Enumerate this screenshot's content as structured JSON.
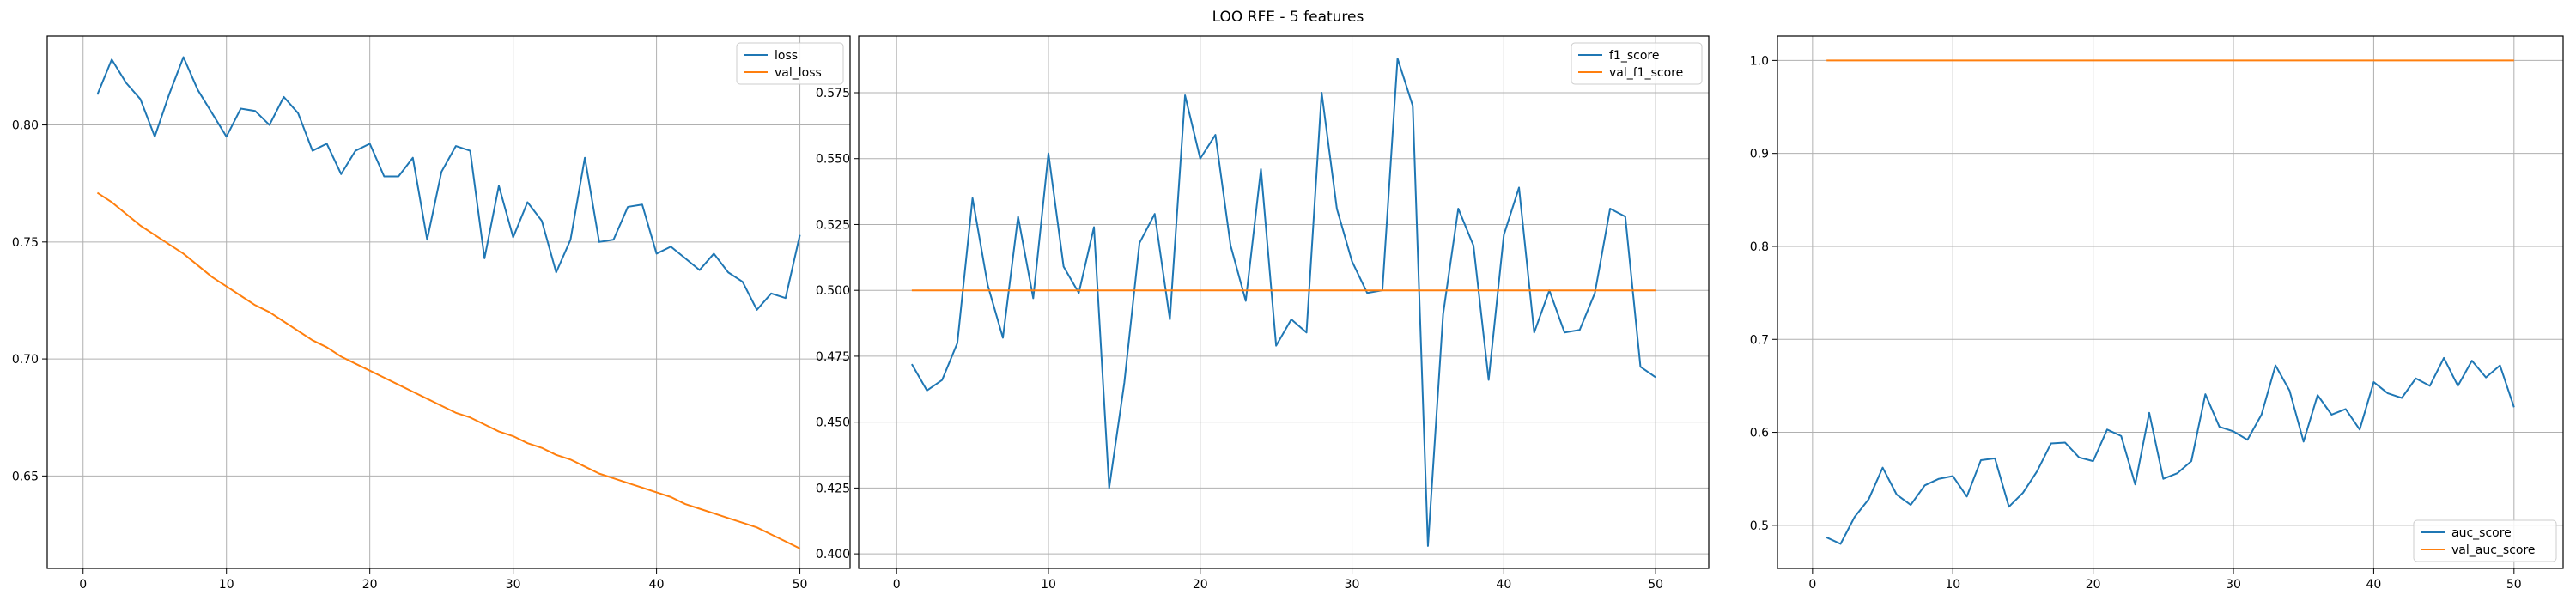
{
  "figure": {
    "suptitle": "LOO RFE - 5 features"
  },
  "colors": {
    "train": "#1f77b4",
    "val": "#ff7f0e",
    "grid": "#b0b0b0",
    "axes": "#000000"
  },
  "chart_data": [
    {
      "type": "line",
      "title": "",
      "xlabel": "",
      "ylabel": "",
      "xlim": [
        -2.5,
        53.5
      ],
      "ylim": [
        0.6105,
        0.838
      ],
      "xticks": [
        0,
        10,
        20,
        30,
        40,
        50
      ],
      "yticks": [
        0.65,
        0.7,
        0.75,
        0.8
      ],
      "ytick_labels": [
        "0.65",
        "0.70",
        "0.75",
        "0.80"
      ],
      "grid": true,
      "legend_position": "top-right",
      "series": [
        {
          "name": "loss",
          "color": "#1f77b4",
          "x": [
            1,
            2,
            3,
            4,
            5,
            6,
            7,
            8,
            9,
            10,
            11,
            12,
            13,
            14,
            15,
            16,
            17,
            18,
            19,
            20,
            21,
            22,
            23,
            24,
            25,
            26,
            27,
            28,
            29,
            30,
            31,
            32,
            33,
            34,
            35,
            36,
            37,
            38,
            39,
            40,
            41,
            42,
            43,
            44,
            45,
            46,
            47,
            48,
            49,
            50
          ],
          "values": [
            0.813,
            0.828,
            0.818,
            0.811,
            0.795,
            0.813,
            0.829,
            0.815,
            0.805,
            0.795,
            0.807,
            0.806,
            0.8,
            0.812,
            0.805,
            0.789,
            0.792,
            0.779,
            0.789,
            0.792,
            0.778,
            0.778,
            0.786,
            0.751,
            0.78,
            0.791,
            0.789,
            0.743,
            0.774,
            0.752,
            0.767,
            0.759,
            0.737,
            0.751,
            0.786,
            0.75,
            0.751,
            0.765,
            0.766,
            0.745,
            0.748,
            0.743,
            0.738,
            0.745,
            0.737,
            0.733,
            0.721,
            0.728,
            0.726,
            0.753
          ]
        },
        {
          "name": "val_loss",
          "color": "#ff7f0e",
          "x": [
            1,
            2,
            3,
            4,
            5,
            6,
            7,
            8,
            9,
            10,
            11,
            12,
            13,
            14,
            15,
            16,
            17,
            18,
            19,
            20,
            21,
            22,
            23,
            24,
            25,
            26,
            27,
            28,
            29,
            30,
            31,
            32,
            33,
            34,
            35,
            36,
            37,
            38,
            39,
            40,
            41,
            42,
            43,
            44,
            45,
            46,
            47,
            48,
            49,
            50
          ],
          "values": [
            0.771,
            0.767,
            0.762,
            0.757,
            0.753,
            0.749,
            0.745,
            0.74,
            0.735,
            0.731,
            0.727,
            0.723,
            0.72,
            0.716,
            0.712,
            0.708,
            0.705,
            0.701,
            0.698,
            0.695,
            0.692,
            0.689,
            0.686,
            0.683,
            0.68,
            0.677,
            0.675,
            0.672,
            0.669,
            0.667,
            0.664,
            0.662,
            0.659,
            0.657,
            0.654,
            0.651,
            0.649,
            0.647,
            0.645,
            0.643,
            0.641,
            0.638,
            0.636,
            0.634,
            0.632,
            0.63,
            0.628,
            0.625,
            0.622,
            0.619
          ]
        }
      ]
    },
    {
      "type": "line",
      "title": "",
      "xlabel": "",
      "ylabel": "",
      "xlim": [
        -2.5,
        53.5
      ],
      "ylim": [
        0.3945,
        0.5965
      ],
      "xticks": [
        0,
        10,
        20,
        30,
        40,
        50
      ],
      "yticks": [
        0.4,
        0.425,
        0.45,
        0.475,
        0.5,
        0.525,
        0.55,
        0.575
      ],
      "ytick_labels": [
        "0.400",
        "0.425",
        "0.450",
        "0.475",
        "0.500",
        "0.525",
        "0.550",
        "0.575"
      ],
      "grid": true,
      "legend_position": "top-right",
      "series": [
        {
          "name": "f1_score",
          "color": "#1f77b4",
          "x": [
            1,
            2,
            3,
            4,
            5,
            6,
            7,
            8,
            9,
            10,
            11,
            12,
            13,
            14,
            15,
            16,
            17,
            18,
            19,
            20,
            21,
            22,
            23,
            24,
            25,
            26,
            27,
            28,
            29,
            30,
            31,
            32,
            33,
            34,
            35,
            36,
            37,
            38,
            39,
            40,
            41,
            42,
            43,
            44,
            45,
            46,
            47,
            48,
            49,
            50
          ],
          "values": [
            0.472,
            0.462,
            0.466,
            0.48,
            0.535,
            0.502,
            0.482,
            0.528,
            0.497,
            0.552,
            0.509,
            0.499,
            0.524,
            0.425,
            0.465,
            0.518,
            0.529,
            0.489,
            0.574,
            0.55,
            0.559,
            0.517,
            0.496,
            0.546,
            0.479,
            0.489,
            0.484,
            0.575,
            0.531,
            0.511,
            0.499,
            0.5,
            0.588,
            0.57,
            0.403,
            0.491,
            0.531,
            0.517,
            0.466,
            0.521,
            0.539,
            0.484,
            0.5,
            0.484,
            0.485,
            0.499,
            0.531,
            0.528,
            0.471,
            0.467
          ]
        },
        {
          "name": "val_f1_score",
          "color": "#ff7f0e",
          "x": [
            1,
            2,
            3,
            4,
            5,
            6,
            7,
            8,
            9,
            10,
            11,
            12,
            13,
            14,
            15,
            16,
            17,
            18,
            19,
            20,
            21,
            22,
            23,
            24,
            25,
            26,
            27,
            28,
            29,
            30,
            31,
            32,
            33,
            34,
            35,
            36,
            37,
            38,
            39,
            40,
            41,
            42,
            43,
            44,
            45,
            46,
            47,
            48,
            49,
            50
          ],
          "values": [
            0.5,
            0.5,
            0.5,
            0.5,
            0.5,
            0.5,
            0.5,
            0.5,
            0.5,
            0.5,
            0.5,
            0.5,
            0.5,
            0.5,
            0.5,
            0.5,
            0.5,
            0.5,
            0.5,
            0.5,
            0.5,
            0.5,
            0.5,
            0.5,
            0.5,
            0.5,
            0.5,
            0.5,
            0.5,
            0.5,
            0.5,
            0.5,
            0.5,
            0.5,
            0.5,
            0.5,
            0.5,
            0.5,
            0.5,
            0.5,
            0.5,
            0.5,
            0.5,
            0.5,
            0.5,
            0.5,
            0.5,
            0.5,
            0.5,
            0.5
          ]
        }
      ]
    },
    {
      "type": "line",
      "title": "",
      "xlabel": "",
      "ylabel": "",
      "xlim": [
        -2.5,
        53.5
      ],
      "ylim": [
        0.4537,
        1.0262
      ],
      "xticks": [
        0,
        10,
        20,
        30,
        40,
        50
      ],
      "yticks": [
        0.5,
        0.6,
        0.7,
        0.8,
        0.9,
        1.0
      ],
      "ytick_labels": [
        "0.5",
        "0.6",
        "0.7",
        "0.8",
        "0.9",
        "1.0"
      ],
      "grid": true,
      "legend_position": "bottom-right",
      "series": [
        {
          "name": "auc_score",
          "color": "#1f77b4",
          "x": [
            1,
            2,
            3,
            4,
            5,
            6,
            7,
            8,
            9,
            10,
            11,
            12,
            13,
            14,
            15,
            16,
            17,
            18,
            19,
            20,
            21,
            22,
            23,
            24,
            25,
            26,
            27,
            28,
            29,
            30,
            31,
            32,
            33,
            34,
            35,
            36,
            37,
            38,
            39,
            40,
            41,
            42,
            43,
            44,
            45,
            46,
            47,
            48,
            49,
            50
          ],
          "values": [
            0.487,
            0.48,
            0.509,
            0.528,
            0.562,
            0.533,
            0.522,
            0.543,
            0.55,
            0.553,
            0.531,
            0.57,
            0.572,
            0.52,
            0.535,
            0.558,
            0.588,
            0.589,
            0.573,
            0.569,
            0.603,
            0.596,
            0.544,
            0.621,
            0.55,
            0.556,
            0.569,
            0.641,
            0.606,
            0.601,
            0.592,
            0.619,
            0.672,
            0.645,
            0.59,
            0.64,
            0.619,
            0.625,
            0.603,
            0.654,
            0.642,
            0.637,
            0.658,
            0.65,
            0.68,
            0.65,
            0.677,
            0.659,
            0.672,
            0.627
          ]
        },
        {
          "name": "val_auc_score",
          "color": "#ff7f0e",
          "x": [
            1,
            2,
            3,
            4,
            5,
            6,
            7,
            8,
            9,
            10,
            11,
            12,
            13,
            14,
            15,
            16,
            17,
            18,
            19,
            20,
            21,
            22,
            23,
            24,
            25,
            26,
            27,
            28,
            29,
            30,
            31,
            32,
            33,
            34,
            35,
            36,
            37,
            38,
            39,
            40,
            41,
            42,
            43,
            44,
            45,
            46,
            47,
            48,
            49,
            50
          ],
          "values": [
            1.0,
            1.0,
            1.0,
            1.0,
            1.0,
            1.0,
            1.0,
            1.0,
            1.0,
            1.0,
            1.0,
            1.0,
            1.0,
            1.0,
            1.0,
            1.0,
            1.0,
            1.0,
            1.0,
            1.0,
            1.0,
            1.0,
            1.0,
            1.0,
            1.0,
            1.0,
            1.0,
            1.0,
            1.0,
            1.0,
            1.0,
            1.0,
            1.0,
            1.0,
            1.0,
            1.0,
            1.0,
            1.0,
            1.0,
            1.0,
            1.0,
            1.0,
            1.0,
            1.0,
            1.0,
            1.0,
            1.0,
            1.0,
            1.0,
            1.0
          ]
        }
      ]
    }
  ]
}
